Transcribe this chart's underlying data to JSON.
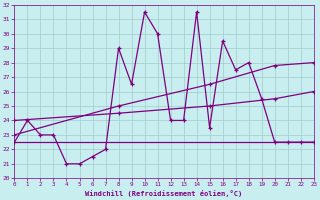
{
  "xlabel": "Windchill (Refroidissement éolien,°C)",
  "x_values": [
    0,
    1,
    2,
    3,
    4,
    5,
    6,
    7,
    8,
    9,
    10,
    11,
    12,
    13,
    14,
    15,
    16,
    17,
    18,
    19,
    20,
    21,
    22,
    23
  ],
  "line1": [
    22.5,
    24.0,
    23.0,
    23.0,
    21.0,
    21.0,
    21.5,
    22.0,
    29.0,
    26.5,
    31.5,
    30.0,
    24.0,
    24.0,
    31.5,
    23.5,
    29.5,
    27.5,
    28.0,
    25.5,
    22.5,
    22.5,
    22.5,
    22.5
  ],
  "line2_x": [
    0,
    23
  ],
  "line2_y": [
    22.5,
    22.5
  ],
  "line3_x": [
    0,
    8,
    15,
    20,
    23
  ],
  "line3_y": [
    23.0,
    25.0,
    26.5,
    27.8,
    28.0
  ],
  "line4_x": [
    0,
    8,
    15,
    20,
    23
  ],
  "line4_y": [
    24.0,
    24.5,
    25.0,
    25.5,
    26.0
  ],
  "ylim": [
    20,
    32
  ],
  "xlim": [
    0,
    23
  ],
  "yticks": [
    20,
    21,
    22,
    23,
    24,
    25,
    26,
    27,
    28,
    29,
    30,
    31,
    32
  ],
  "xticks": [
    0,
    1,
    2,
    3,
    4,
    5,
    6,
    7,
    8,
    9,
    10,
    11,
    12,
    13,
    14,
    15,
    16,
    17,
    18,
    19,
    20,
    21,
    22,
    23
  ],
  "line_color": "#800080",
  "bg_color": "#c8eef0",
  "grid_color": "#a0cccc",
  "font_color": "#800080",
  "marker": "+"
}
